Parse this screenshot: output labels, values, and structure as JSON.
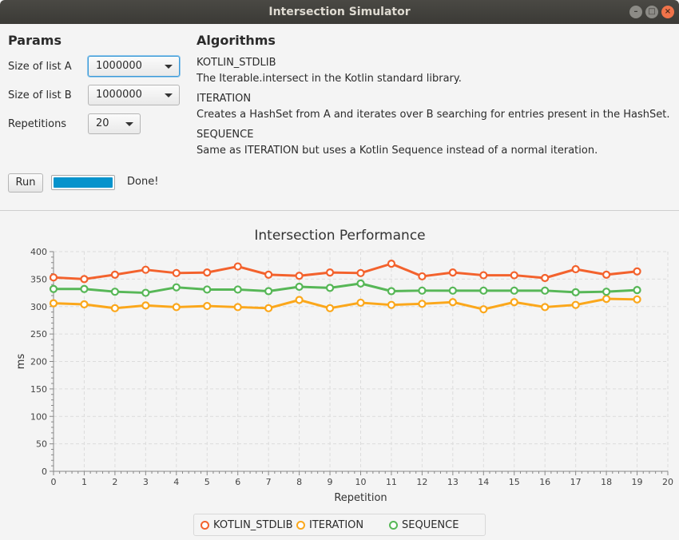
{
  "window": {
    "title": "Intersection Simulator",
    "controls": [
      "–",
      "□",
      "×"
    ]
  },
  "params": {
    "title": "Params",
    "size_a_label": "Size of list A",
    "size_a_value": "1000000",
    "size_b_label": "Size of list B",
    "size_b_value": "1000000",
    "repetitions_label": "Repetitions",
    "repetitions_value": "20",
    "run_label": "Run",
    "progress": 1.0,
    "status": "Done!"
  },
  "algorithms": {
    "title": "Algorithms",
    "items": [
      {
        "name": "KOTLIN_STDLIB",
        "desc": "The Iterable.intersect in the Kotlin standard library."
      },
      {
        "name": "ITERATION",
        "desc": "Creates a HashSet from A and iterates over B searching for entries present in the HashSet."
      },
      {
        "name": "SEQUENCE",
        "desc": "Same as ITERATION but uses a Kotlin Sequence instead of a normal iteration."
      }
    ]
  },
  "chart_data": {
    "type": "line",
    "title": "Intersection Performance",
    "xlabel": "Repetition",
    "ylabel": "ms",
    "xlim": [
      0,
      20
    ],
    "ylim": [
      0,
      400
    ],
    "x_major_step": 1,
    "y_major_step": 50,
    "grid": true,
    "legend": "bottom",
    "x": [
      0,
      1,
      2,
      3,
      4,
      5,
      6,
      7,
      8,
      9,
      10,
      11,
      12,
      13,
      14,
      15,
      16,
      17,
      18,
      19
    ],
    "series": [
      {
        "name": "KOTLIN_STDLIB",
        "color": "#f3622d",
        "values": [
          353,
          350,
          358,
          367,
          361,
          362,
          373,
          358,
          356,
          362,
          361,
          378,
          355,
          362,
          357,
          357,
          352,
          368,
          358,
          364
        ]
      },
      {
        "name": "ITERATION",
        "color": "#fba71b",
        "values": [
          306,
          304,
          297,
          302,
          299,
          301,
          299,
          297,
          312,
          297,
          307,
          303,
          305,
          308,
          295,
          308,
          299,
          303,
          314,
          313
        ]
      },
      {
        "name": "SEQUENCE",
        "color": "#57b757",
        "values": [
          332,
          332,
          327,
          325,
          335,
          331,
          331,
          328,
          336,
          334,
          342,
          328,
          329,
          329,
          329,
          329,
          329,
          326,
          327,
          330
        ]
      }
    ]
  }
}
